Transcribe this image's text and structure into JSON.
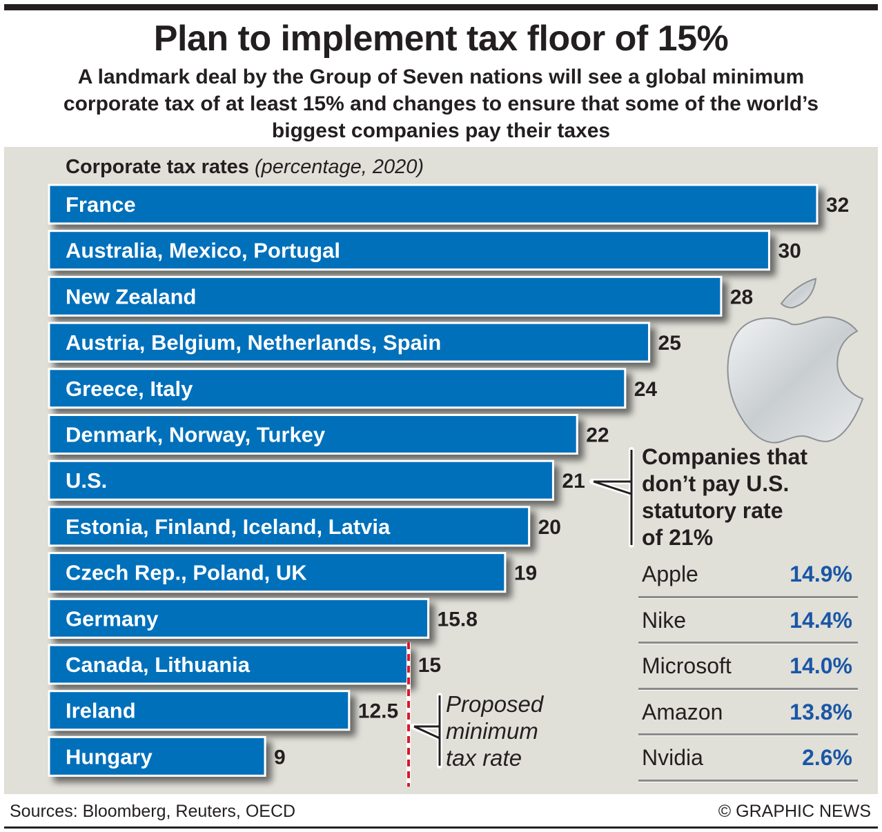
{
  "header": {
    "title": "Plan to implement tax floor of 15%",
    "subtitle": "A landmark deal by the Group of Seven nations will see a global minimum corporate tax of at least 15% and changes to ensure that some of the world’s biggest companies pay their taxes"
  },
  "chart_data": {
    "type": "bar",
    "orientation": "horizontal",
    "title": "Corporate tax rates",
    "title_qualifier": "(percentage, 2020)",
    "categories": [
      "France",
      "Australia, Mexico, Portugal",
      "New Zealand",
      "Austria, Belgium, Netherlands, Spain",
      "Greece, Italy",
      "Denmark, Norway, Turkey",
      "U.S.",
      "Estonia, Finland, Iceland, Latvia",
      "Czech Rep., Poland, UK",
      "Germany",
      "Canada, Lithuania",
      "Ireland",
      "Hungary"
    ],
    "values": [
      32,
      30,
      28,
      25,
      24,
      22,
      21,
      20,
      19,
      15.8,
      15,
      12.5,
      9
    ],
    "value_labels": [
      "32",
      "30",
      "28",
      "25",
      "24",
      "22",
      "21",
      "20",
      "19",
      "15.8",
      "15",
      "12.5",
      "9"
    ],
    "xlim": [
      0,
      32
    ],
    "grid": false,
    "bar_color": "#0070bb",
    "reference_line": {
      "value": 15,
      "label": "Proposed minimum tax rate",
      "color": "#d7182a",
      "style": "dashed"
    },
    "annotations": [
      {
        "target": "U.S.",
        "text": "Companies that don’t pay U.S. statutory rate of 21%"
      }
    ]
  },
  "callout": {
    "title_lines": [
      "Companies that",
      "don’t pay U.S.",
      "statutory rate",
      "of 21%"
    ],
    "icon": "apple-logo-icon"
  },
  "companies": [
    {
      "name": "Apple",
      "rate": "14.9%"
    },
    {
      "name": "Nike",
      "rate": "14.4%"
    },
    {
      "name": "Microsoft",
      "rate": "14.0%"
    },
    {
      "name": "Amazon",
      "rate": "13.8%"
    },
    {
      "name": "Nvidia",
      "rate": "2.6%"
    }
  ],
  "proposed_note_lines": [
    "Proposed",
    "minimum",
    "tax rate"
  ],
  "colors": {
    "bar": "#0070bb",
    "accent_text": "#1a56a6",
    "panel": "#e0dfd8",
    "reference_line": "#d7182a"
  },
  "footer": {
    "sources": "Sources:  Bloomberg, Reuters, OECD",
    "credit": "© GRAPHIC NEWS"
  }
}
